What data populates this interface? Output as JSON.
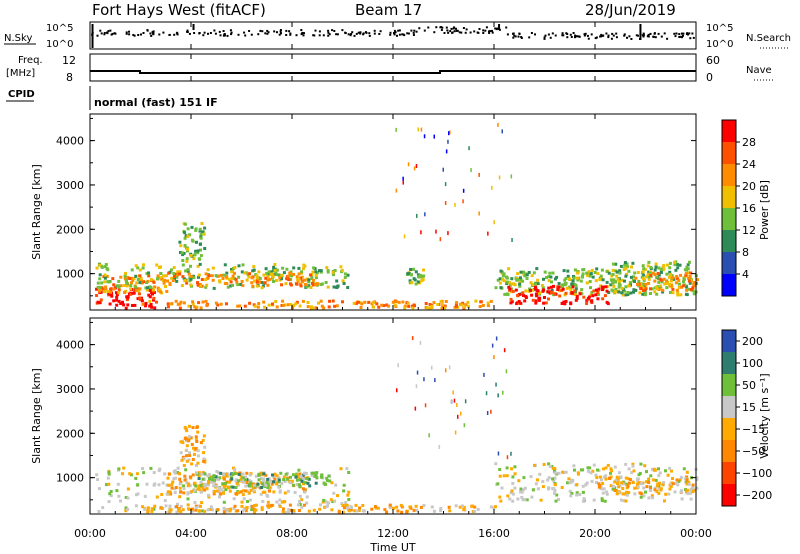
{
  "header": {
    "station": "Fort Hays West (fitACF)",
    "beam": "Beam 17",
    "date": "28/Jun/2019"
  },
  "noise_panel": {
    "left_label": "N.Sky",
    "right_label": "N.Search",
    "left_ticks": [
      "10^5",
      "10^0"
    ],
    "right_ticks": [
      "10^5",
      "10^0"
    ]
  },
  "freq_panel": {
    "left_label_1": "Freq.",
    "left_label_2": "[MHz]",
    "left_ticks": [
      "12",
      "8"
    ],
    "right_label": "Nave",
    "right_ticks": [
      "60",
      "0"
    ]
  },
  "cpid_panel": {
    "label": "CPID",
    "text": "normal (fast) 151 IF"
  },
  "colors": {
    "power": [
      "#0000ff",
      "#2a4fb0",
      "#2e8b57",
      "#6fbf3a",
      "#f0c000",
      "#ff8c00",
      "#ff5000",
      "#ff0000"
    ],
    "velocity": [
      "#2a4fb0",
      "#2e7d6e",
      "#6fbf3a",
      "#c8c8c8",
      "#ffaa00",
      "#ff8800",
      "#ff4400",
      "#ff0000"
    ]
  },
  "chart_data": [
    {
      "type": "heatmap",
      "name": "power",
      "ylabel": "Slant Range [km]",
      "yticks": [
        "1000",
        "2000",
        "3000",
        "4000"
      ],
      "ylim": [
        180,
        4600
      ],
      "colorbar_label": "Power [dB]",
      "colorbar_ticks": [
        "4",
        "8",
        "12",
        "16",
        "20",
        "24",
        "28"
      ],
      "colorbar_range": [
        0,
        32
      ],
      "regions": [
        {
          "t0": 0.2,
          "t1": 2.6,
          "r0": 250,
          "r1": 720,
          "level": 7
        },
        {
          "t0": 0.2,
          "t1": 3.0,
          "r0": 600,
          "r1": 1000,
          "level": 5
        },
        {
          "t0": 0.2,
          "t1": 10.2,
          "r0": 700,
          "r1": 1250,
          "level": 3
        },
        {
          "t0": 3.0,
          "t1": 9.0,
          "r0": 750,
          "r1": 1050,
          "level": 5
        },
        {
          "t0": 3.5,
          "t1": 4.5,
          "r0": 1300,
          "r1": 2200,
          "level": 3
        },
        {
          "t0": 2.0,
          "t1": 16.0,
          "r0": 250,
          "r1": 420,
          "level": 5
        },
        {
          "t0": 16.0,
          "t1": 21.5,
          "r0": 550,
          "r1": 1150,
          "level": 3
        },
        {
          "t0": 16.5,
          "t1": 20.5,
          "r0": 350,
          "r1": 750,
          "level": 7
        },
        {
          "t0": 20.5,
          "t1": 24.0,
          "r0": 550,
          "r1": 1300,
          "level": 3
        },
        {
          "t0": 21.5,
          "t1": 24.0,
          "r0": 650,
          "r1": 1050,
          "level": 5
        },
        {
          "t0": 12.5,
          "t1": 13.2,
          "r0": 800,
          "r1": 1150,
          "level": 3
        }
      ]
    },
    {
      "type": "heatmap",
      "name": "velocity",
      "ylabel": "Slant Range [km]",
      "yticks": [
        "1000",
        "2000",
        "3000",
        "4000"
      ],
      "ylim": [
        180,
        4600
      ],
      "colorbar_label": "Velocity [m s⁻¹]",
      "colorbar_ticks": [
        "200",
        "100",
        "50",
        "15",
        "−15",
        "−50",
        "−100",
        "−200"
      ],
      "xlabel": "Time UT",
      "xticks": [
        "00:00",
        "04:00",
        "08:00",
        "12:00",
        "16:00",
        "20:00",
        "00:00"
      ],
      "xlim": [
        0,
        24
      ],
      "regions": [
        {
          "t0": 0.2,
          "t1": 10.2,
          "r0": 250,
          "r1": 1250,
          "level": 3
        },
        {
          "t0": 3.0,
          "t1": 8.5,
          "r0": 650,
          "r1": 1150,
          "level": 4
        },
        {
          "t0": 4.0,
          "t1": 9.5,
          "r0": 800,
          "r1": 1150,
          "level": 2
        },
        {
          "t0": 3.5,
          "t1": 4.5,
          "r0": 1300,
          "r1": 2200,
          "level": 4
        },
        {
          "t0": 2.0,
          "t1": 16.0,
          "r0": 250,
          "r1": 420,
          "level": 4
        },
        {
          "t0": 16.0,
          "t1": 24.0,
          "r0": 500,
          "r1": 1350,
          "level": 3
        },
        {
          "t0": 20.0,
          "t1": 24.0,
          "r0": 650,
          "r1": 1050,
          "level": 4
        }
      ]
    }
  ]
}
